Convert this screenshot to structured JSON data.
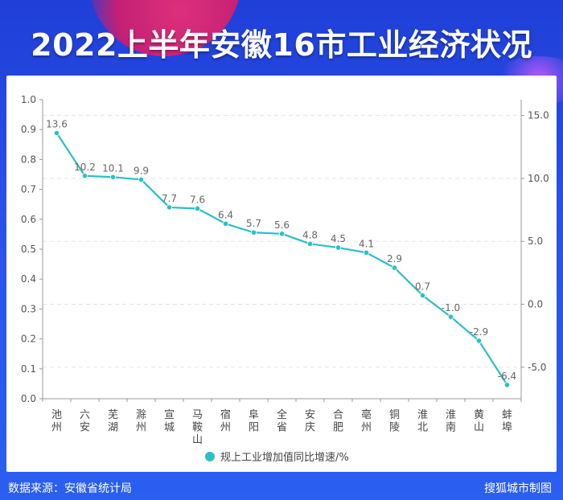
{
  "title": "2022上半年安徽16市工业经济状况",
  "footer": {
    "source": "数据来源：安徽省统计局",
    "credit": "搜狐城市制图"
  },
  "colors": {
    "line": "#2bbfc8",
    "background": "#2a52ea",
    "panel": "#ffffff"
  },
  "chart_data": {
    "type": "line",
    "categories": [
      [
        "池",
        "州"
      ],
      [
        "六",
        "安"
      ],
      [
        "芜",
        "湖"
      ],
      [
        "滁",
        "州"
      ],
      [
        "宣",
        "城"
      ],
      [
        "马",
        "鞍",
        "山"
      ],
      [
        "宿",
        "州"
      ],
      [
        "阜",
        "阳"
      ],
      [
        "全",
        "省"
      ],
      [
        "安",
        "庆"
      ],
      [
        "合",
        "肥"
      ],
      [
        "亳",
        "州"
      ],
      [
        "铜",
        "陵"
      ],
      [
        "淮",
        "北"
      ],
      [
        "淮",
        "南"
      ],
      [
        "黄",
        "山"
      ],
      [
        "蚌",
        "埠"
      ]
    ],
    "series": [
      {
        "name": "规上工业增加值同比增速/%",
        "values": [
          13.6,
          10.2,
          10.1,
          9.9,
          7.7,
          7.6,
          6.4,
          5.7,
          5.6,
          4.8,
          4.5,
          4.1,
          2.9,
          0.7,
          -1.0,
          -2.9,
          -6.4
        ],
        "labels": [
          "13.6",
          "10.2",
          "10.1",
          "9.9",
          "7.7",
          "7.6",
          "6.4",
          "5.7",
          "5.6",
          "4.8",
          "4.5",
          "4.1",
          "2.9",
          "0.7",
          "-1.0",
          "-2.9",
          "-6.4"
        ]
      }
    ],
    "left_axis": {
      "ylim": [
        0,
        1.0
      ],
      "ticks": [
        "0.0",
        "0.1",
        "0.2",
        "0.3",
        "0.4",
        "0.5",
        "0.6",
        "0.7",
        "0.8",
        "0.9",
        "1.0"
      ]
    },
    "right_axis": {
      "ylim": [
        -7.5,
        16.25
      ],
      "ticks": [
        "-5.0",
        "0.0",
        "5.0",
        "10.0",
        "15.0"
      ],
      "tick_values": [
        -5,
        0,
        5,
        10,
        15
      ]
    },
    "grid": true,
    "legend": "bottom-center"
  }
}
